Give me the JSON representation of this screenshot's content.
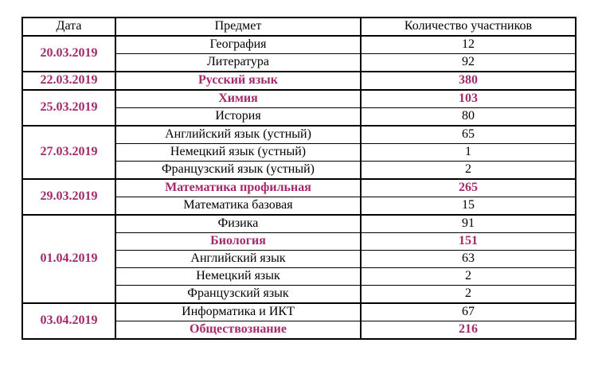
{
  "accent_color": "#a32a6b",
  "table": {
    "headers": [
      "Дата",
      "Предмет",
      "Количество участников"
    ],
    "groups": [
      {
        "date": "20.03.2019",
        "rows": [
          {
            "subject": "География",
            "count": "12",
            "highlight": false
          },
          {
            "subject": "Литература",
            "count": "92",
            "highlight": false
          }
        ]
      },
      {
        "date": "22.03.2019",
        "rows": [
          {
            "subject": "Русский язык",
            "count": "380",
            "highlight": true
          }
        ]
      },
      {
        "date": "25.03.2019",
        "rows": [
          {
            "subject": "Химия",
            "count": "103",
            "highlight": true
          },
          {
            "subject": "История",
            "count": "80",
            "highlight": false
          }
        ]
      },
      {
        "date": "27.03.2019",
        "rows": [
          {
            "subject": "Английский язык (устный)",
            "count": "65",
            "highlight": false
          },
          {
            "subject": "Немецкий язык (устный)",
            "count": "1",
            "highlight": false
          },
          {
            "subject": "Французский язык (устный)",
            "count": "2",
            "highlight": false
          }
        ]
      },
      {
        "date": "29.03.2019",
        "rows": [
          {
            "subject": "Математика профильная",
            "count": "265",
            "highlight": true
          },
          {
            "subject": "Математика базовая",
            "count": "15",
            "highlight": false
          }
        ]
      },
      {
        "date": "01.04.2019",
        "rows": [
          {
            "subject": "Физика",
            "count": "91",
            "highlight": false
          },
          {
            "subject": "Биология",
            "count": "151",
            "highlight": true
          },
          {
            "subject": "Английский язык",
            "count": "63",
            "highlight": false
          },
          {
            "subject": "Немецкий язык",
            "count": "2",
            "highlight": false
          },
          {
            "subject": "Французский язык",
            "count": "2",
            "highlight": false
          }
        ]
      },
      {
        "date": "03.04.2019",
        "rows": [
          {
            "subject": "Информатика и ИКТ",
            "count": "67",
            "highlight": false
          },
          {
            "subject": "Обществознание",
            "count": "216",
            "highlight": true
          }
        ]
      }
    ]
  }
}
